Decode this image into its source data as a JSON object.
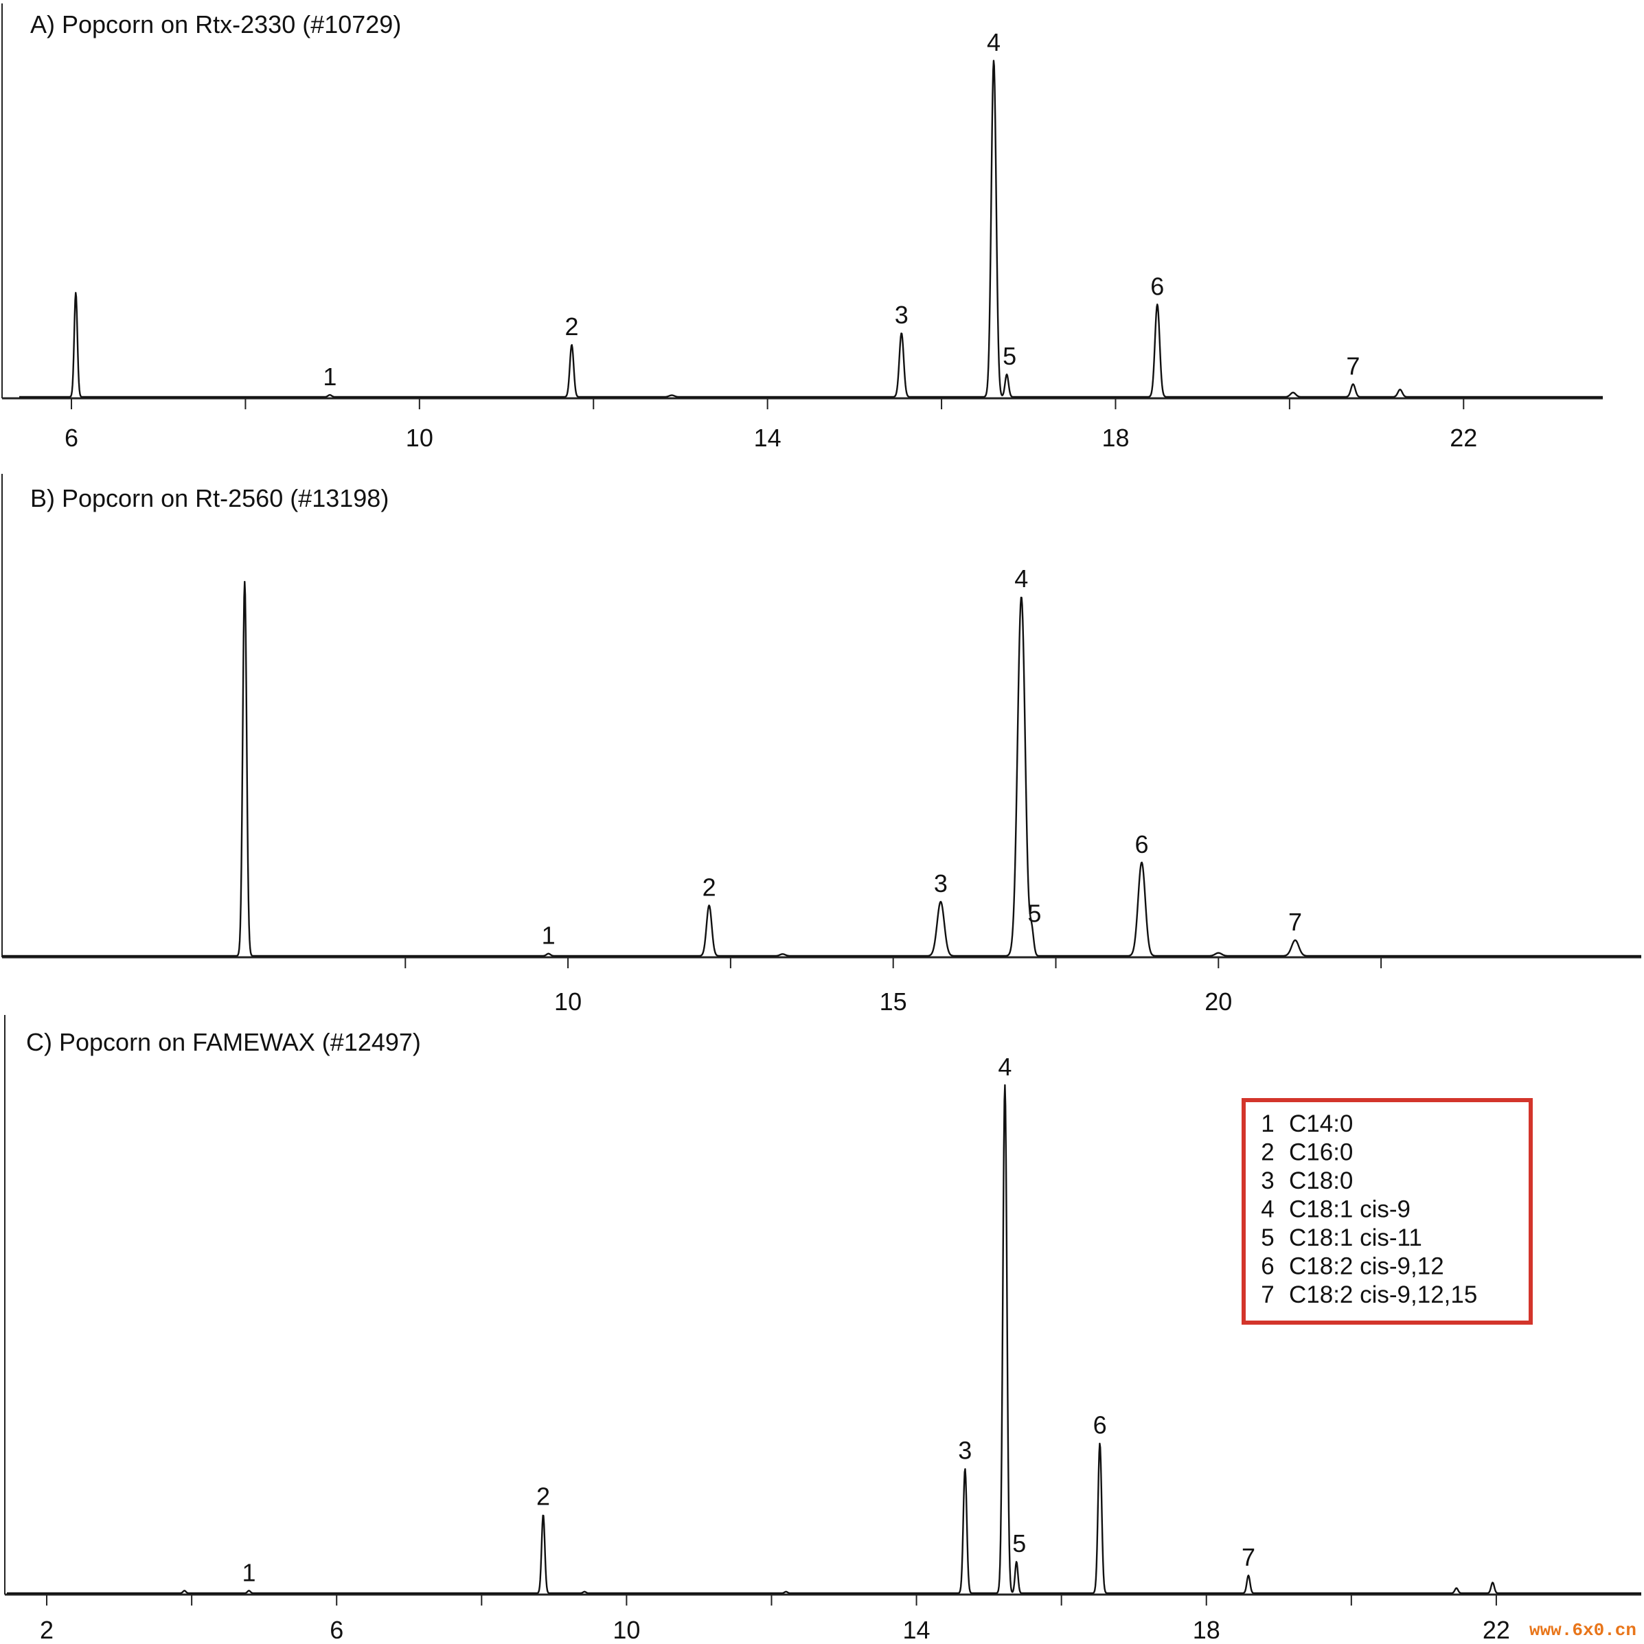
{
  "chart_data": [
    {
      "type": "line",
      "title": "A) Popcorn on Rtx-2330 (#10729)",
      "xlim": [
        5.4,
        23.6
      ],
      "ylim": [
        0,
        100
      ],
      "xticks": [
        6,
        8,
        10,
        12,
        14,
        16,
        18,
        20,
        22
      ],
      "xtick_labels": [
        "6",
        "",
        "10",
        "",
        "14",
        "",
        "18",
        "",
        "22"
      ],
      "peaks": [
        {
          "x": 6.05,
          "h": 31,
          "w": 0.018,
          "label": ""
        },
        {
          "x": 8.97,
          "h": 0.6,
          "w": 0.02,
          "label": "1"
        },
        {
          "x": 11.75,
          "h": 15.5,
          "w": 0.022,
          "label": "2"
        },
        {
          "x": 12.9,
          "h": 0.5,
          "w": 0.03,
          "label": ""
        },
        {
          "x": 15.54,
          "h": 19,
          "w": 0.025,
          "label": "3"
        },
        {
          "x": 16.6,
          "h": 100,
          "w": 0.028,
          "label": "4"
        },
        {
          "x": 16.75,
          "h": 6.7,
          "w": 0.02,
          "label": "5"
        },
        {
          "x": 18.48,
          "h": 27.5,
          "w": 0.027,
          "label": "6"
        },
        {
          "x": 20.04,
          "h": 1.3,
          "w": 0.03,
          "label": ""
        },
        {
          "x": 20.73,
          "h": 3.8,
          "w": 0.025,
          "label": "7"
        },
        {
          "x": 21.27,
          "h": 2.2,
          "w": 0.025,
          "label": ""
        }
      ]
    },
    {
      "type": "line",
      "title": "B) Popcorn on Rt-2560 (#13198)",
      "xlim": [
        1.3,
        26.5
      ],
      "ylim": [
        0,
        100
      ],
      "xticks": [
        7.5,
        10,
        12.5,
        15,
        17.5,
        20,
        22.5
      ],
      "xtick_labels": [
        "",
        "10",
        "",
        "15",
        "",
        "20",
        ""
      ],
      "peaks": [
        {
          "x": 5.03,
          "h": 100,
          "w": 0.03,
          "label": ""
        },
        {
          "x": 9.7,
          "h": 0.6,
          "w": 0.03,
          "label": "1"
        },
        {
          "x": 12.17,
          "h": 13.5,
          "w": 0.04,
          "label": "2"
        },
        {
          "x": 13.3,
          "h": 0.5,
          "w": 0.04,
          "label": ""
        },
        {
          "x": 15.73,
          "h": 14.5,
          "w": 0.055,
          "label": "3"
        },
        {
          "x": 16.97,
          "h": 96,
          "w": 0.058,
          "label": "4"
        },
        {
          "x": 17.13,
          "h": 6.5,
          "w": 0.03,
          "label": "5"
        },
        {
          "x": 18.82,
          "h": 25,
          "w": 0.055,
          "label": "6"
        },
        {
          "x": 20.0,
          "h": 0.8,
          "w": 0.05,
          "label": ""
        },
        {
          "x": 21.18,
          "h": 4.2,
          "w": 0.055,
          "label": "7"
        }
      ]
    },
    {
      "type": "line",
      "title": "C) Popcorn on FAMEWAX (#12497)",
      "xlim": [
        1.45,
        24.0
      ],
      "ylim": [
        0,
        100
      ],
      "xticks": [
        2,
        4,
        6,
        8,
        10,
        12,
        14,
        16,
        18,
        20,
        22
      ],
      "xtick_labels": [
        "2",
        "",
        "6",
        "",
        "10",
        "",
        "14",
        "",
        "18",
        "",
        "22"
      ],
      "peaks": [
        {
          "x": 3.9,
          "h": 0.5,
          "w": 0.02,
          "label": ""
        },
        {
          "x": 4.79,
          "h": 0.5,
          "w": 0.02,
          "label": "1"
        },
        {
          "x": 8.85,
          "h": 15.5,
          "w": 0.022,
          "label": "2"
        },
        {
          "x": 9.42,
          "h": 0.3,
          "w": 0.02,
          "label": ""
        },
        {
          "x": 12.2,
          "h": 0.3,
          "w": 0.02,
          "label": ""
        },
        {
          "x": 14.67,
          "h": 24.5,
          "w": 0.024,
          "label": "3"
        },
        {
          "x": 15.22,
          "h": 100,
          "w": 0.028,
          "label": "4"
        },
        {
          "x": 15.38,
          "h": 6.2,
          "w": 0.02,
          "label": "5"
        },
        {
          "x": 16.53,
          "h": 29.5,
          "w": 0.025,
          "label": "6"
        },
        {
          "x": 18.58,
          "h": 3.5,
          "w": 0.022,
          "label": "7"
        },
        {
          "x": 21.45,
          "h": 1.0,
          "w": 0.022,
          "label": ""
        },
        {
          "x": 21.95,
          "h": 2.1,
          "w": 0.022,
          "label": ""
        }
      ]
    }
  ],
  "legend": {
    "border_color": "#d3352b",
    "items": [
      {
        "num": "1",
        "name": "C14:0"
      },
      {
        "num": "2",
        "name": "C16:0"
      },
      {
        "num": "3",
        "name": "C18:0"
      },
      {
        "num": "4",
        "name": "C18:1 cis-9"
      },
      {
        "num": "5",
        "name": "C18:1 cis-11"
      },
      {
        "num": "6",
        "name": "C18:2 cis-9,12"
      },
      {
        "num": "7",
        "name": "C18:2 cis-9,12,15"
      }
    ]
  },
  "watermark": "www.6x0.cn"
}
